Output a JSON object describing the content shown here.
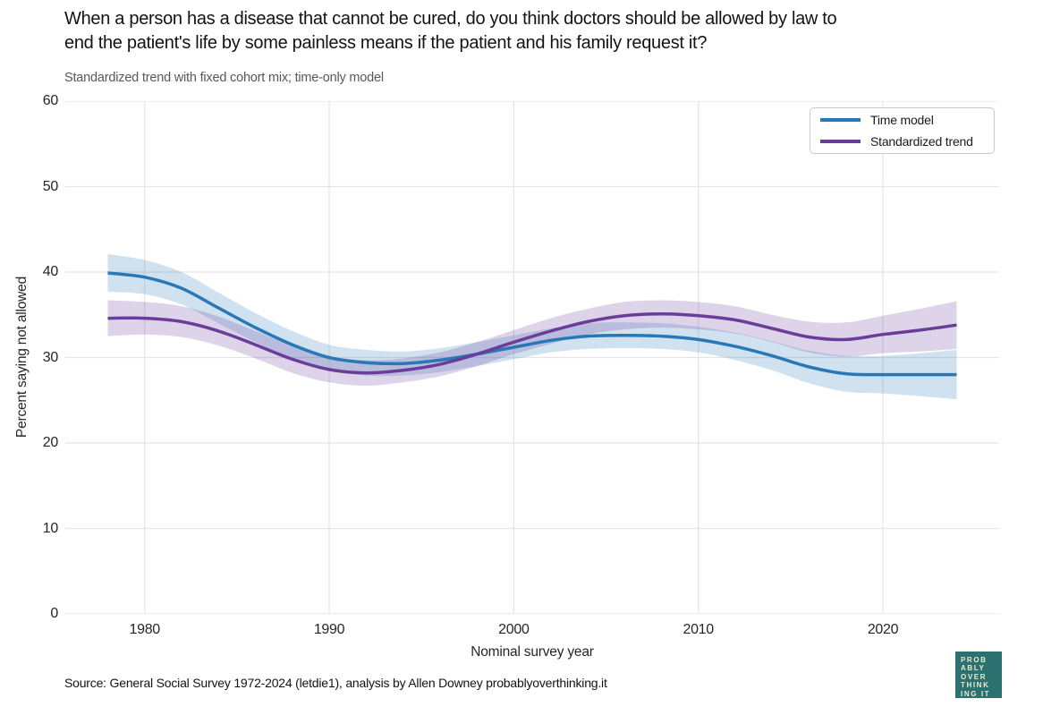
{
  "header": {
    "title_line1": "When a person has a disease that cannot be cured, do you think doctors should be allowed by law to",
    "title_line2": "end the patient's life by some painless means if the patient and his family request it?",
    "subtitle": "Standardized trend with fixed cohort mix; time-only model"
  },
  "footer": {
    "source": "Source: General Social Survey 1972-2024 (letdie1), analysis by Allen Downey probablyoverthinking.it",
    "logo_lines": [
      "PROB",
      "ABLY",
      "OVER",
      "THINK",
      "ING IT"
    ],
    "logo_bg": "#2a7170",
    "logo_text_color": "#efe8cd"
  },
  "chart_data": {
    "type": "line",
    "title": "When a person has a disease that cannot be cured, do you think doctors should be allowed by law to end the patient's life by some painless means if the patient and his family request it?",
    "subtitle": "Standardized trend with fixed cohort mix; time-only model",
    "xlabel": "Nominal survey year",
    "ylabel": "Percent saying not allowed",
    "xlim": [
      1975.7,
      2026.3
    ],
    "ylim": [
      0,
      60
    ],
    "xticks": [
      1980,
      1990,
      2000,
      2010,
      2020
    ],
    "yticks": [
      0,
      10,
      20,
      30,
      40,
      50,
      60
    ],
    "grid": true,
    "grid_color": "#e4e4e4",
    "background_color": "#ffffff",
    "legend_position": "upper right",
    "band_opacity": 0.22,
    "x": [
      1978,
      1980,
      1982,
      1984,
      1986,
      1988,
      1990,
      1992,
      1994,
      1996,
      1998,
      2000,
      2002,
      2004,
      2006,
      2008,
      2010,
      2012,
      2014,
      2016,
      2018,
      2020,
      2022,
      2024
    ],
    "series": [
      {
        "name": "Time model",
        "color": "#2878b8",
        "values": [
          39.9,
          39.4,
          38.1,
          35.8,
          33.5,
          31.5,
          30.0,
          29.4,
          29.3,
          29.7,
          30.4,
          31.2,
          32.0,
          32.5,
          32.6,
          32.5,
          32.1,
          31.3,
          30.2,
          28.9,
          28.1,
          28.0,
          28.0,
          28.0
        ],
        "band_upper": [
          42.1,
          41.4,
          40.0,
          37.6,
          35.2,
          33.1,
          31.5,
          30.9,
          30.7,
          31.1,
          31.8,
          32.6,
          33.4,
          34.0,
          34.1,
          34.0,
          33.6,
          32.9,
          31.9,
          30.8,
          30.2,
          30.2,
          30.5,
          30.9
        ],
        "band_lower": [
          37.7,
          37.4,
          36.2,
          34.0,
          31.8,
          29.9,
          28.5,
          27.9,
          27.9,
          28.3,
          29.0,
          29.8,
          30.6,
          31.0,
          31.1,
          31.0,
          30.6,
          29.7,
          28.5,
          27.0,
          26.0,
          25.8,
          25.5,
          25.1
        ]
      },
      {
        "name": "Standardized trend",
        "color": "#6a3d9b",
        "values": [
          34.6,
          34.6,
          34.2,
          33.1,
          31.5,
          29.8,
          28.6,
          28.2,
          28.5,
          29.2,
          30.4,
          31.8,
          33.1,
          34.2,
          34.9,
          35.1,
          34.9,
          34.4,
          33.4,
          32.4,
          32.1,
          32.7,
          33.2,
          33.8
        ],
        "band_upper": [
          36.7,
          36.5,
          36.0,
          34.8,
          33.1,
          31.4,
          30.1,
          29.7,
          29.9,
          30.6,
          31.8,
          33.2,
          34.6,
          35.7,
          36.5,
          36.7,
          36.5,
          36.0,
          35.0,
          34.2,
          34.1,
          34.9,
          35.7,
          36.6
        ],
        "band_lower": [
          32.5,
          32.7,
          32.4,
          31.4,
          29.9,
          28.2,
          27.1,
          26.7,
          27.1,
          27.8,
          29.0,
          30.4,
          31.6,
          32.7,
          33.3,
          33.5,
          33.3,
          32.8,
          31.8,
          30.6,
          30.1,
          30.5,
          30.7,
          31.0
        ]
      }
    ]
  }
}
